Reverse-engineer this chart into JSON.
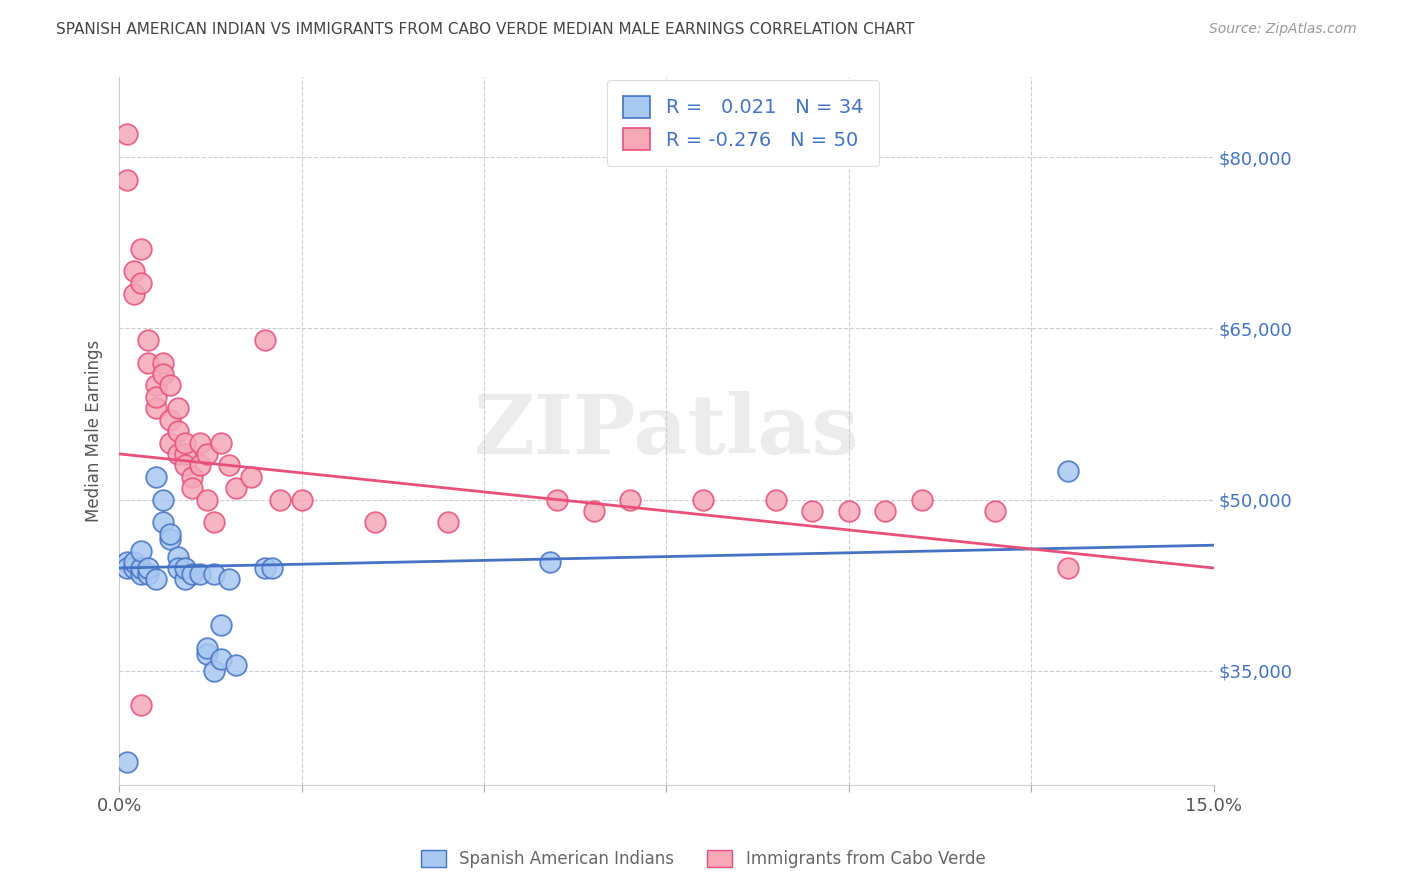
{
  "title": "SPANISH AMERICAN INDIAN VS IMMIGRANTS FROM CABO VERDE MEDIAN MALE EARNINGS CORRELATION CHART",
  "source": "Source: ZipAtlas.com",
  "ylabel": "Median Male Earnings",
  "xlim": [
    0,
    0.15
  ],
  "ylim": [
    25000,
    87000
  ],
  "yticks": [
    35000,
    50000,
    65000,
    80000
  ],
  "ytick_labels": [
    "$35,000",
    "$50,000",
    "$65,000",
    "$80,000"
  ],
  "legend_label1": "Spanish American Indians",
  "legend_label2": "Immigrants from Cabo Verde",
  "R1": 0.021,
  "N1": 34,
  "R2": -0.276,
  "N2": 50,
  "color_blue": "#A8C8F0",
  "color_pink": "#F4A8B8",
  "line_color_blue": "#4472C4",
  "line_color_pink": "#E8507A",
  "watermark": "ZIPatlas",
  "blue_x": [
    0.001,
    0.001,
    0.002,
    0.002,
    0.003,
    0.003,
    0.003,
    0.004,
    0.004,
    0.005,
    0.005,
    0.006,
    0.006,
    0.007,
    0.007,
    0.008,
    0.008,
    0.009,
    0.009,
    0.01,
    0.011,
    0.012,
    0.012,
    0.013,
    0.013,
    0.014,
    0.014,
    0.015,
    0.016,
    0.02,
    0.021,
    0.059,
    0.13,
    0.001
  ],
  "blue_y": [
    44500,
    44000,
    44000,
    44500,
    43500,
    44000,
    45500,
    43500,
    44000,
    43000,
    52000,
    48000,
    50000,
    46500,
    47000,
    45000,
    44000,
    43000,
    44000,
    43500,
    43500,
    36500,
    37000,
    35000,
    43500,
    36000,
    39000,
    43000,
    35500,
    44000,
    44000,
    44500,
    52500,
    27000
  ],
  "pink_x": [
    0.001,
    0.001,
    0.002,
    0.002,
    0.003,
    0.003,
    0.004,
    0.004,
    0.005,
    0.005,
    0.005,
    0.006,
    0.006,
    0.007,
    0.007,
    0.007,
    0.008,
    0.008,
    0.008,
    0.009,
    0.009,
    0.009,
    0.01,
    0.01,
    0.011,
    0.011,
    0.012,
    0.012,
    0.013,
    0.014,
    0.015,
    0.016,
    0.018,
    0.02,
    0.022,
    0.025,
    0.035,
    0.045,
    0.06,
    0.065,
    0.07,
    0.08,
    0.09,
    0.095,
    0.1,
    0.105,
    0.11,
    0.12,
    0.13,
    0.003
  ],
  "pink_y": [
    82000,
    78000,
    70000,
    68000,
    72000,
    69000,
    62000,
    64000,
    60000,
    58000,
    59000,
    62000,
    61000,
    55000,
    57000,
    60000,
    56000,
    54000,
    58000,
    54000,
    55000,
    53000,
    52000,
    51000,
    55000,
    53000,
    50000,
    54000,
    48000,
    55000,
    53000,
    51000,
    52000,
    64000,
    50000,
    50000,
    48000,
    48000,
    50000,
    49000,
    50000,
    50000,
    50000,
    49000,
    49000,
    49000,
    50000,
    49000,
    44000,
    32000
  ],
  "blue_line_y0": 44000,
  "blue_line_y1": 46000,
  "pink_line_y0": 54000,
  "pink_line_y1": 44000
}
